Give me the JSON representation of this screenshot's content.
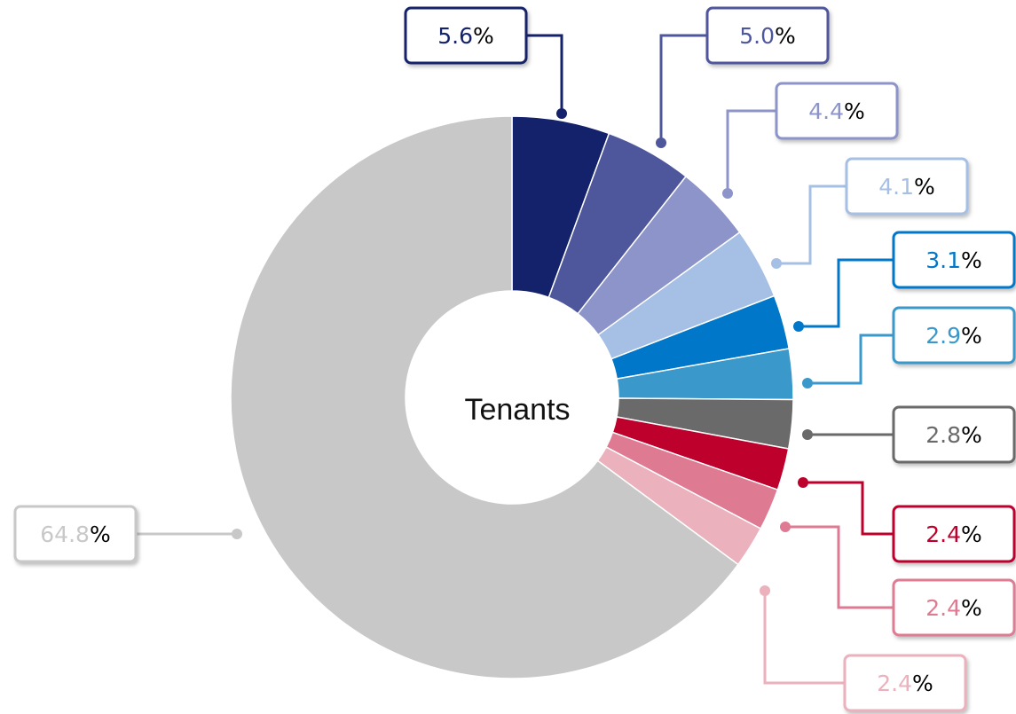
{
  "chart_data": {
    "type": "donut",
    "center_label": "Tenants",
    "values": [
      5.6,
      5.0,
      4.4,
      4.1,
      3.1,
      2.9,
      2.8,
      2.4,
      2.4,
      2.4,
      64.8
    ],
    "value_labels": [
      "5.6%",
      "5.0%",
      "4.4%",
      "4.1%",
      "3.1%",
      "2.9%",
      "2.8%",
      "2.4%",
      "2.4%",
      "2.4%",
      "64.8%"
    ],
    "colors": [
      "#14216b",
      "#4f579c",
      "#8d94c9",
      "#a5c0e4",
      "#0077c8",
      "#3a98cb",
      "#6a6a6a",
      "#be002d",
      "#de7b93",
      "#ebb1bd",
      "#c8c8c8"
    ]
  }
}
